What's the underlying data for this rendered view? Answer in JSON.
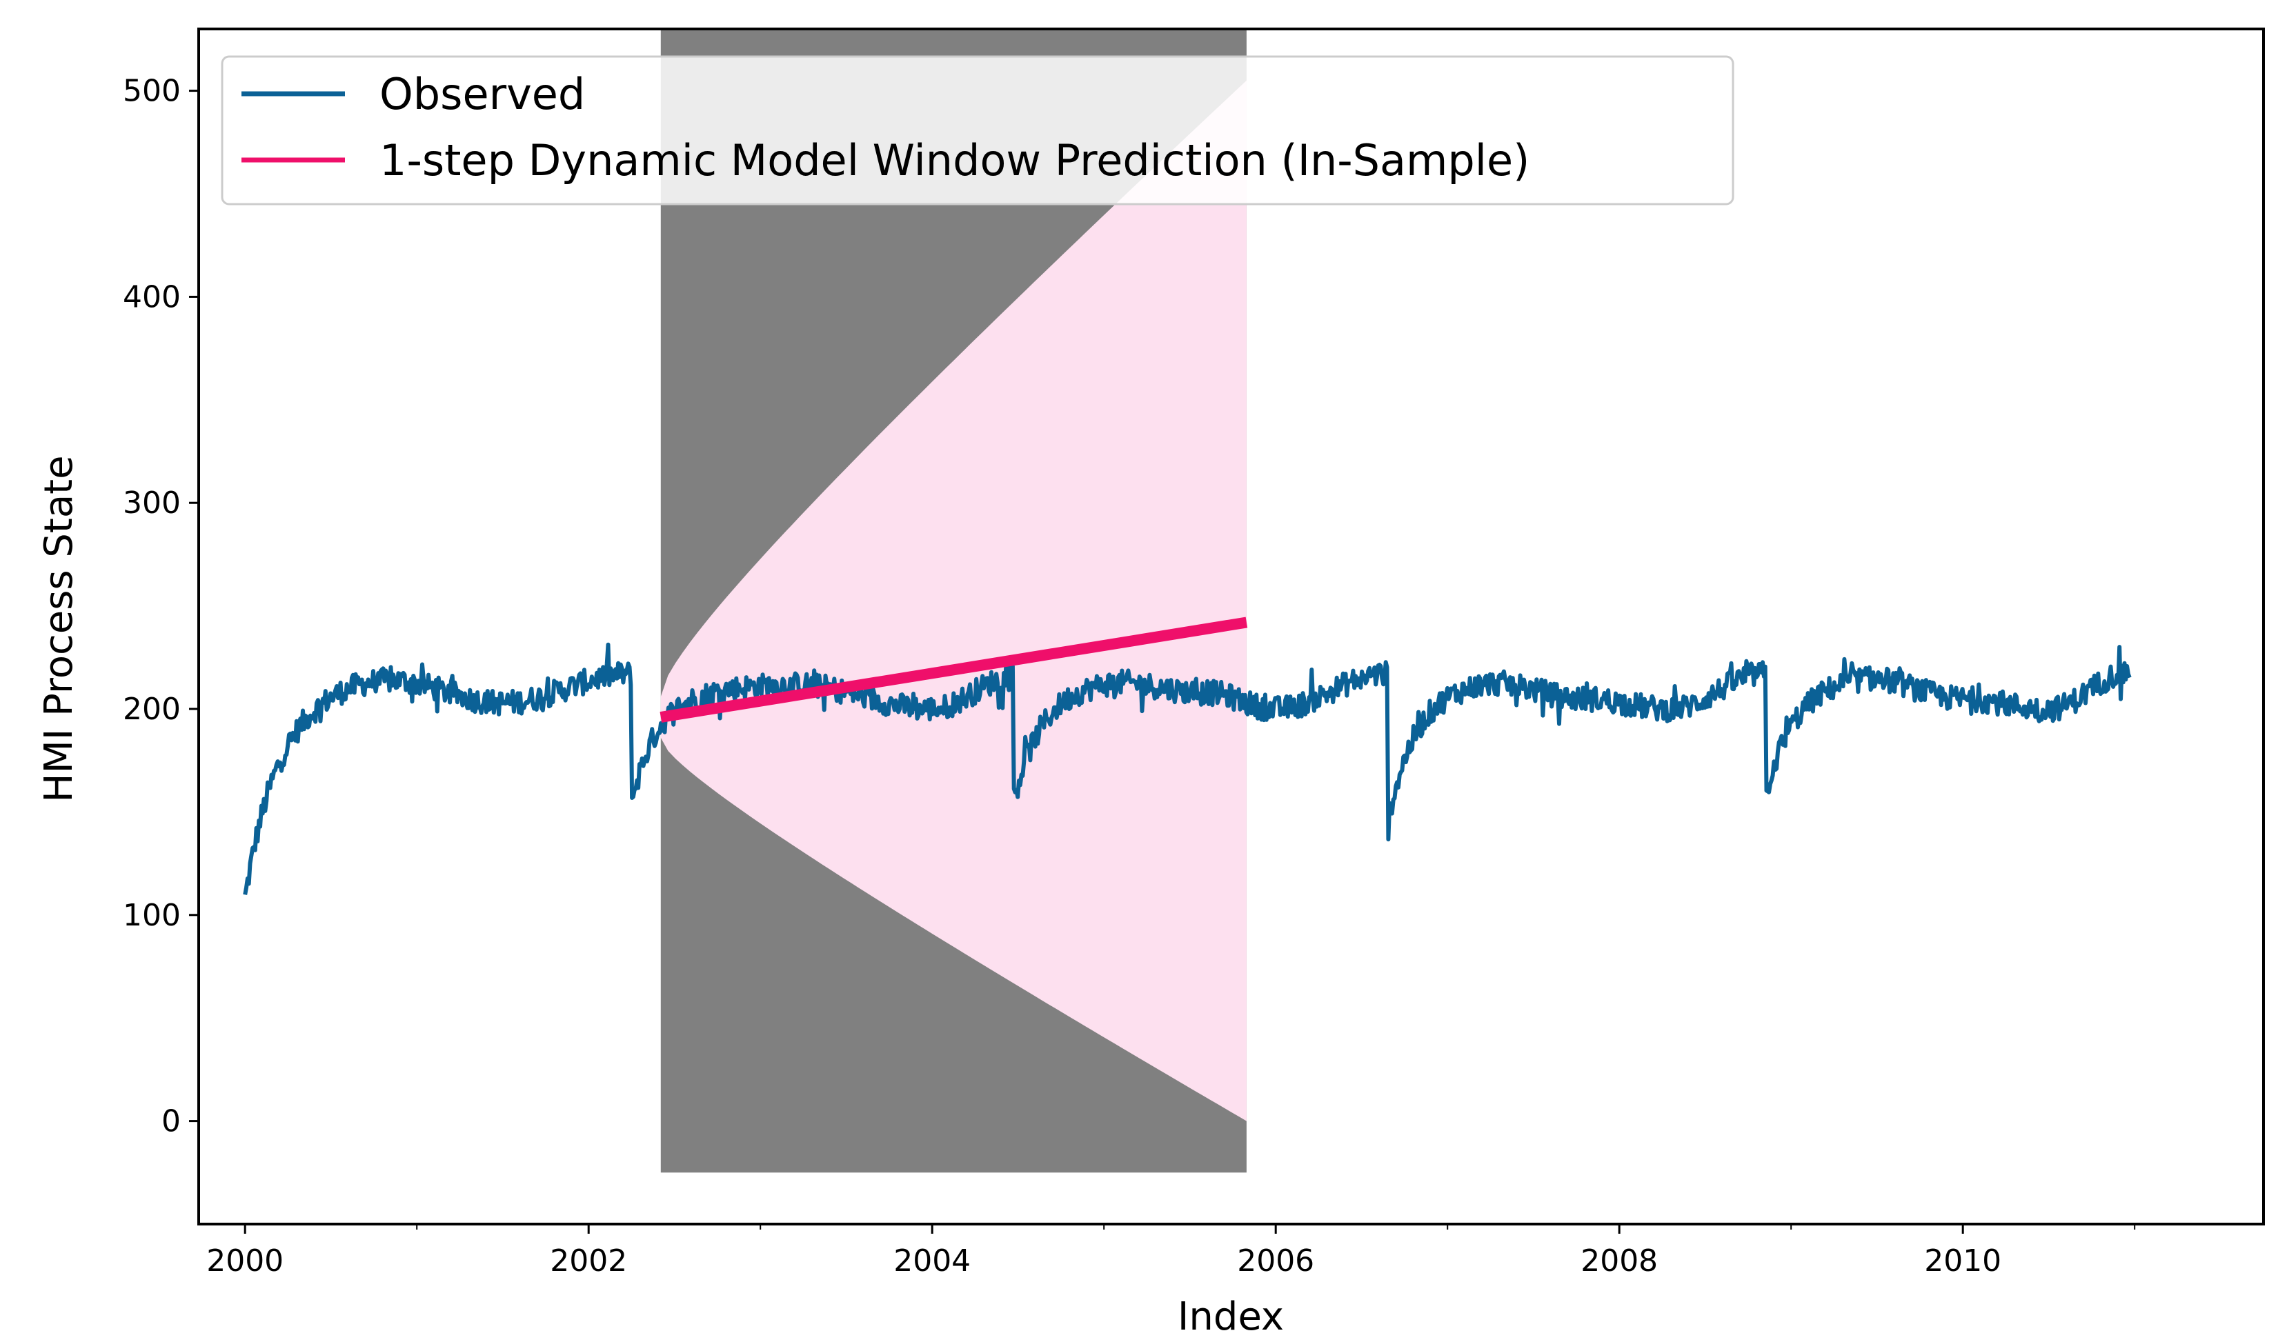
{
  "chart_data": {
    "type": "line",
    "title": "",
    "xlabel": "Index",
    "ylabel": "HMI Process State",
    "xlim": [
      1999.73,
      2011.75
    ],
    "ylim": [
      -50,
      530
    ],
    "x_ticks": [
      2000,
      2002,
      2004,
      2006,
      2008,
      2010
    ],
    "x_tick_labels": [
      "2000",
      "2002",
      "2004",
      "2006",
      "2008",
      "2010"
    ],
    "y_ticks": [
      0,
      100,
      200,
      300,
      400,
      500
    ],
    "y_tick_labels": [
      "0",
      "100",
      "200",
      "300",
      "400",
      "500"
    ],
    "grid": false,
    "legend": {
      "position": "top-left",
      "entries": [
        {
          "label": "Observed",
          "color": "#0b6196"
        },
        {
          "label": "1-step Dynamic Model Window Prediction (In-Sample)",
          "color": "#ef0f6a"
        }
      ]
    },
    "colors": {
      "observed": "#0b6196",
      "prediction": "#ef0f6a",
      "confidence_band": "#fde0ef",
      "window_shade": "#808080"
    },
    "observed_series": {
      "name": "Observed",
      "resets": [
        {
          "t": 2000.0,
          "start": 108,
          "tau": 0.18
        },
        {
          "t": 2002.25,
          "start": 155,
          "tau": 0.18
        },
        {
          "t": 2004.47,
          "start": 155,
          "tau": 0.18
        },
        {
          "t": 2006.65,
          "start": 145,
          "tau": 0.18
        },
        {
          "t": 2008.85,
          "start": 158,
          "tau": 0.18
        }
      ],
      "base_knots_x": [
        2000.0,
        2000.8,
        2001.5,
        2002.24,
        2002.7,
        2003.2,
        2004.0,
        2004.46,
        2005.0,
        2005.6,
        2006.0,
        2006.64,
        2007.2,
        2007.8,
        2008.3,
        2008.84,
        2009.4,
        2010.0,
        2010.5,
        2010.97
      ],
      "base_knots_y": [
        205,
        215,
        203,
        217,
        212,
        212,
        200,
        215,
        215,
        208,
        200,
        217,
        215,
        205,
        200,
        217,
        217,
        205,
        200,
        218
      ],
      "end_x": 2010.97,
      "samples": 1500,
      "noise_amplitude": 6
    },
    "prediction": {
      "name": "1-step Dynamic Model Window Prediction (In-Sample)",
      "x": [
        2002.42,
        2005.83
      ],
      "y": [
        196,
        242
      ]
    },
    "confidence_interval": {
      "x_start": 2002.42,
      "x_end": 2005.83,
      "upper_start": 206,
      "upper_end": 505,
      "lower_start": 186,
      "lower_end": 0
    },
    "window_shade": {
      "x_start": 2002.42,
      "x_end": 2005.83,
      "y_min": -25,
      "y_max": 530
    }
  }
}
